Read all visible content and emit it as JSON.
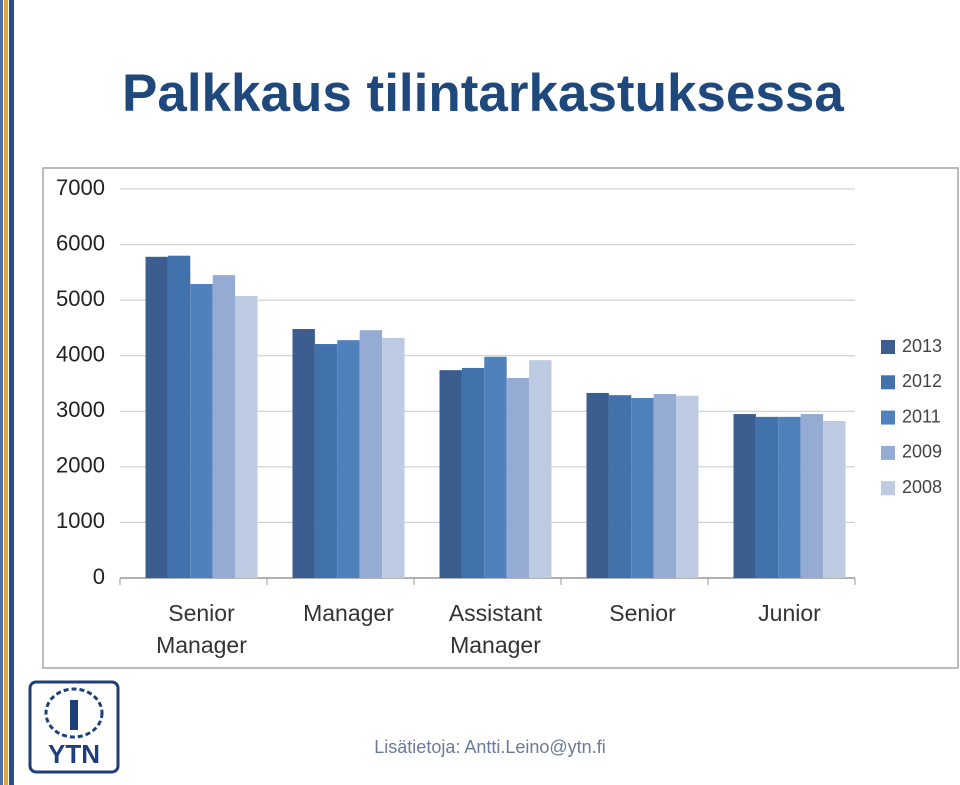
{
  "chart_data": {
    "type": "bar",
    "title": "Palkkaus tilintarkastuksessa",
    "categories": [
      "Senior Manager",
      "Manager",
      "Assistant Manager",
      "Senior",
      "Junior"
    ],
    "series": [
      {
        "name": "2013",
        "color": "#3b5e8f",
        "values": [
          5780,
          4480,
          3740,
          3330,
          2950
        ]
      },
      {
        "name": "2012",
        "color": "#4272ab",
        "values": [
          5800,
          4210,
          3780,
          3290,
          2900
        ]
      },
      {
        "name": "2011",
        "color": "#4f81bd",
        "values": [
          5290,
          4280,
          3980,
          3240,
          2900
        ]
      },
      {
        "name": "2009",
        "color": "#95abd4",
        "values": [
          5450,
          4460,
          3600,
          3310,
          2950
        ]
      },
      {
        "name": "2008",
        "color": "#bccbe2",
        "values": [
          5075,
          4320,
          3920,
          3280,
          2825
        ]
      }
    ],
    "ylim": [
      0,
      7000
    ],
    "yticks": [
      0,
      1000,
      2000,
      3000,
      4000,
      5000,
      6000,
      7000
    ],
    "grid": true,
    "legend": "right"
  },
  "footer": "Lisätietoja: Antti.Leino@ytn.fi",
  "logo_text": "YTN"
}
